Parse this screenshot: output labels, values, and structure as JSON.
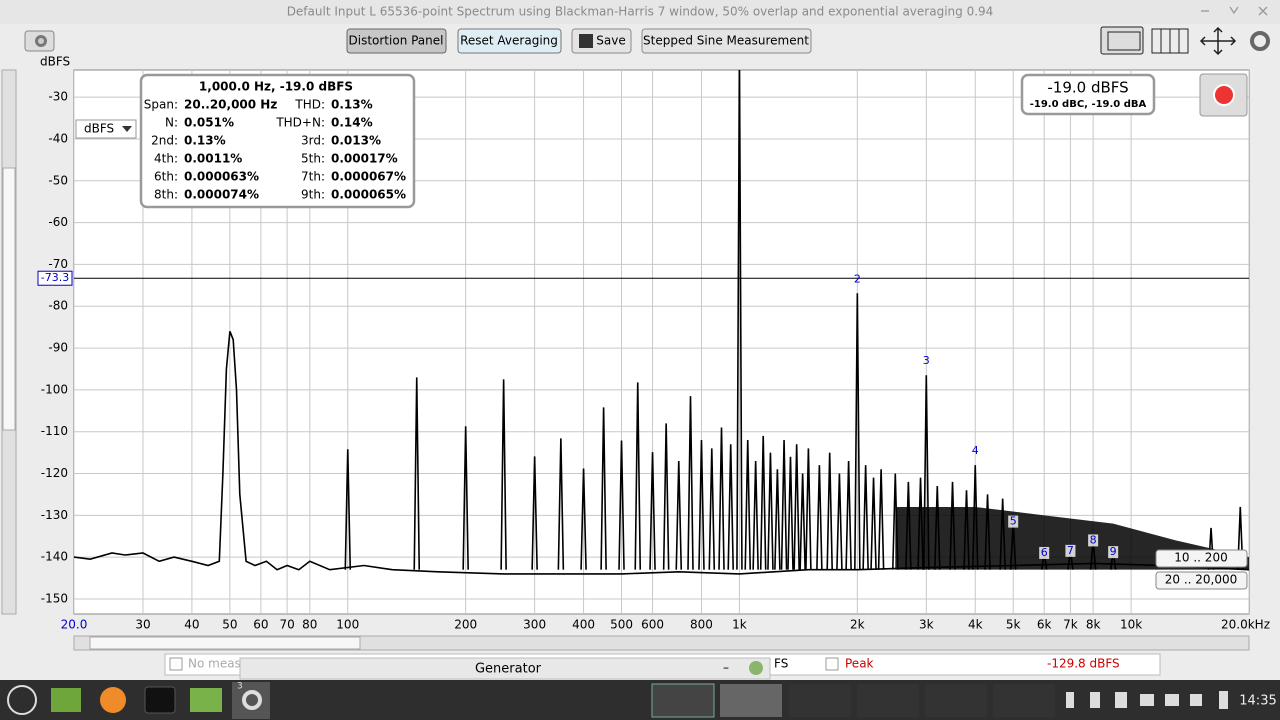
{
  "window": {
    "title": "Default Input L 65536-point Spectrum using Blackman-Harris 7 window, 50% overlap and exponential averaging 0.94"
  },
  "toolbar": {
    "buttons": [
      "Distortion Panel",
      "Reset Averaging",
      "Save",
      "Stepped Sine Measurement"
    ]
  },
  "unit_select": "dBFS",
  "distortion": {
    "heading": "1,000.0 Hz, -19.0 dBFS",
    "rows": [
      [
        "Span:",
        "20..20,000 Hz",
        "THD:",
        "0.13%"
      ],
      [
        "N:",
        "0.051%",
        "THD+N:",
        "0.14%"
      ],
      [
        "2nd:",
        "0.13%",
        "3rd:",
        "0.013%"
      ],
      [
        "4th:",
        "0.0011%",
        "5th:",
        "0.00017%"
      ],
      [
        "6th:",
        "0.000063%",
        "7th:",
        "0.000067%"
      ],
      [
        "8th:",
        "0.000074%",
        "9th:",
        "0.000065%"
      ]
    ]
  },
  "level": {
    "main": "-19.0 dBFS",
    "sub": "-19.0 dBC, -19.0 dBA"
  },
  "ranges": [
    "10 .. 200",
    "20 .. 20,000"
  ],
  "chart_data": {
    "type": "line",
    "ylabel": "dBFS",
    "log_x": true,
    "grid": true,
    "color": "#000000",
    "xlim": [
      20,
      20000
    ],
    "ylim": [
      -153.6,
      -23.5
    ],
    "xticks": [
      {
        "value": 20,
        "label": "20.0"
      },
      30,
      40,
      50,
      60,
      70,
      80,
      100,
      200,
      300,
      400,
      500,
      600,
      800,
      {
        "value": 1000,
        "label": "1k"
      },
      {
        "value": 2000,
        "label": "2k"
      },
      {
        "value": 3000,
        "label": "3k"
      },
      {
        "value": 4000,
        "label": "4k"
      },
      {
        "value": 5000,
        "label": "5k"
      },
      {
        "value": 6000,
        "label": "6k"
      },
      {
        "value": 7000,
        "label": "7k"
      },
      {
        "value": 8000,
        "label": "8k"
      },
      {
        "value": 10000,
        "label": "10k"
      },
      {
        "value": 20000,
        "label": "20.0kHz"
      }
    ],
    "yticks": [
      -30,
      -40,
      -50,
      -60,
      -70,
      -80,
      -90,
      -100,
      -110,
      -120,
      -130,
      -140,
      -150
    ],
    "cursor": -73.3,
    "floor": -143,
    "trace": {
      "x": [
        20,
        22,
        25,
        27,
        30,
        33,
        36,
        40,
        44,
        47,
        48,
        49,
        50,
        51,
        52,
        53,
        55,
        58,
        62,
        66,
        70,
        75,
        80,
        90,
        110,
        130,
        170,
        250,
        350,
        500,
        700,
        1000,
        1500,
        2000,
        3000,
        5000,
        8000,
        12000,
        20000
      ],
      "y": [
        -140,
        -140.5,
        -139,
        -139.5,
        -139,
        -141,
        -140,
        -141,
        -142,
        -141,
        -120,
        -95,
        -86,
        -88,
        -100,
        -125,
        -141,
        -142,
        -141,
        -143,
        -142,
        -143,
        -141,
        -143,
        -142,
        -143,
        -143.5,
        -144,
        -144,
        -144,
        -143.5,
        -144,
        -143,
        -143,
        -142.5,
        -142,
        -141.5,
        -142,
        -143
      ]
    },
    "fundamental": {
      "x": 1000,
      "y": -19.0
    },
    "peaks": {
      "x": [
        100,
        150,
        200,
        250,
        300,
        350,
        400,
        450,
        500,
        550,
        600,
        650,
        700,
        750,
        800,
        850,
        900,
        950,
        1050,
        1100,
        1150,
        1200,
        1250,
        1300,
        1350,
        1400,
        1450,
        1500,
        1600,
        1700,
        1800,
        1900,
        2100,
        2200,
        2300,
        2500,
        2700,
        2900,
        3200,
        3500,
        3800,
        4300,
        4700,
        16000,
        19000
      ],
      "y": [
        -114.2,
        -97,
        -108.7,
        -97.5,
        -115.9,
        -111.6,
        -118.8,
        -104.2,
        -112.1,
        -98.2,
        -114.9,
        -108,
        -117,
        -101.5,
        -112,
        -114,
        -109,
        -113,
        -112,
        -117,
        -111,
        -115,
        -119,
        -112,
        -116,
        -113,
        -120,
        -114,
        -118,
        -115,
        -120,
        -117,
        -118,
        -121,
        -119,
        -120,
        -122,
        -121,
        -123,
        -122,
        -124,
        -125,
        -126,
        -133,
        -128
      ]
    },
    "harmonics": {
      "labels": [
        "2",
        "3",
        "4",
        "5",
        "6",
        "7",
        "8",
        "9"
      ],
      "x": [
        2000,
        3000,
        4000,
        5000,
        6000,
        7000,
        8000,
        9000
      ],
      "y": [
        -76.9,
        -96.5,
        -118.0,
        -131.5,
        -139,
        -138.5,
        -136,
        -138.8
      ]
    },
    "dense_band": {
      "x": [
        2500,
        4000,
        6000,
        9000,
        13000,
        20000
      ],
      "y": [
        -128,
        -128,
        -130,
        -132,
        -136,
        -140
      ]
    }
  },
  "status": {
    "no_meas": "No meas",
    "generator": "Generator",
    "minimize": "–",
    "fs": "FS",
    "peak": "Peak",
    "peak_value": "-129.8 dBFS"
  },
  "taskbar": {
    "badge": "3",
    "clock": "14:35"
  }
}
